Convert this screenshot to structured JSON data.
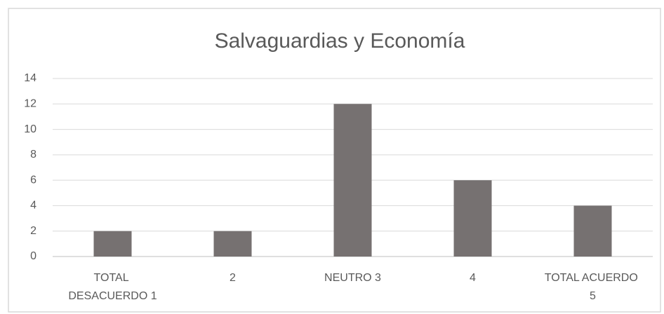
{
  "chart_data": {
    "type": "bar",
    "title": "Salvaguardias y Economía",
    "categories": [
      "TOTAL DESACUERDO 1",
      "2",
      "NEUTRO 3",
      "4",
      "TOTAL ACUERDO 5"
    ],
    "values": [
      2,
      2,
      12,
      6,
      4
    ],
    "color": "#767171",
    "ylim": [
      0,
      14
    ],
    "yticks": [
      0,
      2,
      4,
      6,
      8,
      10,
      12,
      14
    ],
    "grid": true
  }
}
